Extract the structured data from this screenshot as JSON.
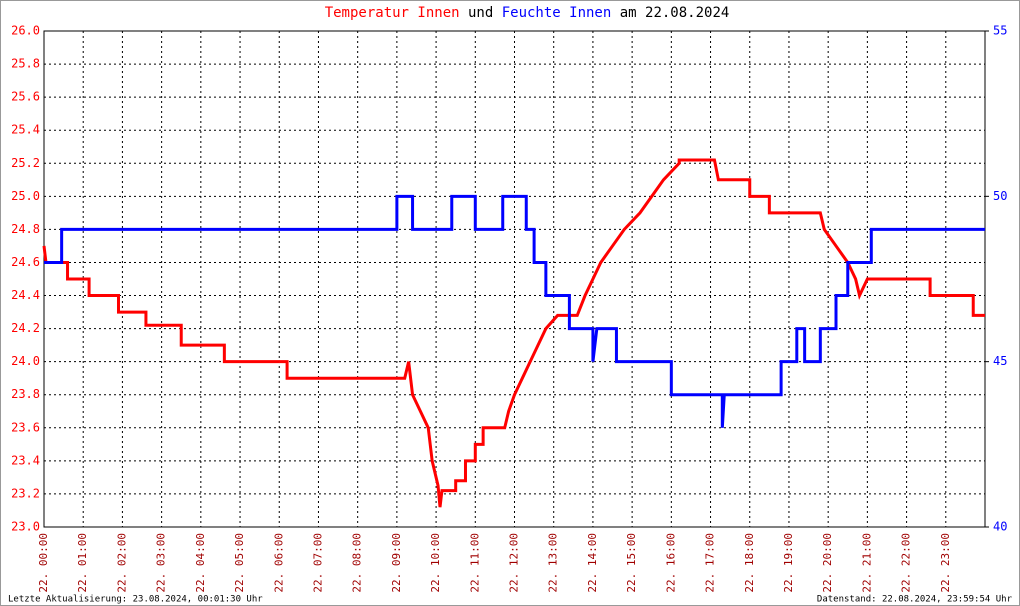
{
  "chart_data": {
    "type": "line",
    "title_connector": "und",
    "title_suffix": "am 22.08.2024",
    "xlim": [
      0,
      24
    ],
    "xticks": [
      {
        "value": 0,
        "label": "22. 00:00"
      },
      {
        "value": 1,
        "label": "22. 01:00"
      },
      {
        "value": 2,
        "label": "22. 02:00"
      },
      {
        "value": 3,
        "label": "22. 03:00"
      },
      {
        "value": 4,
        "label": "22. 04:00"
      },
      {
        "value": 5,
        "label": "22. 05:00"
      },
      {
        "value": 6,
        "label": "22. 06:00"
      },
      {
        "value": 7,
        "label": "22. 07:00"
      },
      {
        "value": 8,
        "label": "22. 08:00"
      },
      {
        "value": 9,
        "label": "22. 09:00"
      },
      {
        "value": 10,
        "label": "22. 10:00"
      },
      {
        "value": 11,
        "label": "22. 11:00"
      },
      {
        "value": 12,
        "label": "22. 12:00"
      },
      {
        "value": 13,
        "label": "22. 13:00"
      },
      {
        "value": 14,
        "label": "22. 14:00"
      },
      {
        "value": 15,
        "label": "22. 15:00"
      },
      {
        "value": 16,
        "label": "22. 16:00"
      },
      {
        "value": 17,
        "label": "22. 17:00"
      },
      {
        "value": 18,
        "label": "22. 18:00"
      },
      {
        "value": 19,
        "label": "22. 19:00"
      },
      {
        "value": 20,
        "label": "22. 20:00"
      },
      {
        "value": 21,
        "label": "22. 21:00"
      },
      {
        "value": 22,
        "label": "22. 22:00"
      },
      {
        "value": 23,
        "label": "22. 23:00"
      }
    ],
    "ylim": [
      23.0,
      26.0
    ],
    "yticks": [
      {
        "value": 23,
        "label": "23.0"
      },
      23.2,
      23.4,
      23.6,
      23.8,
      {
        "value": 24,
        "label": "24.0"
      },
      24.2,
      24.4,
      24.6,
      24.8,
      {
        "value": 25,
        "label": "25.0"
      },
      25.2,
      25.4,
      25.6,
      25.8,
      {
        "value": 26,
        "label": "26.0"
      }
    ],
    "y2lim": [
      40,
      55
    ],
    "y2ticks": [
      40,
      45,
      50,
      55
    ],
    "grid": true,
    "series": [
      {
        "name": "Temperatur Innen",
        "color": "#ff0000",
        "axis": "y",
        "x": [
          0,
          0.05,
          0.6,
          0.6,
          1.15,
          1.15,
          1.9,
          1.9,
          2.6,
          2.6,
          3.5,
          3.5,
          4.6,
          4.6,
          6.2,
          6.2,
          9.2,
          9.3,
          9.4,
          9.6,
          9.8,
          9.9,
          10.05,
          10.1,
          10.15,
          10.5,
          10.5,
          10.75,
          10.75,
          11.0,
          11.0,
          11.2,
          11.2,
          11.75,
          11.85,
          12.0,
          12.2,
          12.4,
          12.6,
          12.8,
          13.1,
          13.6,
          13.8,
          14.0,
          14.2,
          14.5,
          14.8,
          15.2,
          15.5,
          15.8,
          16.2,
          16.2,
          17.1,
          17.2,
          18.0,
          18.0,
          18.5,
          18.5,
          19.8,
          19.9,
          20.2,
          20.5,
          20.7,
          20.8,
          21.0,
          22.0,
          22.6,
          22.6,
          23.7,
          23.7,
          24
        ],
        "values": [
          24.7,
          24.6,
          24.6,
          24.5,
          24.5,
          24.4,
          24.4,
          24.3,
          24.3,
          24.22,
          24.22,
          24.1,
          24.1,
          24.0,
          24.0,
          23.9,
          23.9,
          24.0,
          23.8,
          23.7,
          23.6,
          23.4,
          23.25,
          23.12,
          23.22,
          23.22,
          23.28,
          23.28,
          23.4,
          23.4,
          23.5,
          23.5,
          23.6,
          23.6,
          23.7,
          23.8,
          23.9,
          24.0,
          24.1,
          24.2,
          24.28,
          24.28,
          24.4,
          24.5,
          24.6,
          24.7,
          24.8,
          24.9,
          25.0,
          25.1,
          25.2,
          25.22,
          25.22,
          25.1,
          25.1,
          25.0,
          25.0,
          24.9,
          24.9,
          24.8,
          24.7,
          24.6,
          24.5,
          24.4,
          24.5,
          24.5,
          24.5,
          24.4,
          24.4,
          24.28,
          24.28
        ]
      },
      {
        "name": "Feuchte Innen",
        "color": "#0000ff",
        "axis": "y2",
        "x": [
          0,
          0.45,
          0.45,
          9.0,
          9.0,
          9.4,
          9.4,
          10.4,
          10.4,
          11.0,
          11.0,
          11.7,
          11.7,
          12.3,
          12.3,
          12.5,
          12.5,
          12.8,
          12.8,
          13.4,
          13.4,
          14.0,
          14.0,
          14.1,
          14.6,
          14.6,
          16.0,
          16.0,
          17.3,
          17.3,
          17.35,
          18.8,
          18.8,
          19.2,
          19.2,
          19.4,
          19.4,
          19.8,
          19.8,
          20.2,
          20.2,
          20.5,
          20.5,
          21.1,
          21.1,
          24
        ],
        "values": [
          48,
          48,
          49,
          49,
          50,
          50,
          49,
          49,
          50,
          50,
          49,
          49,
          50,
          50,
          49,
          49,
          48,
          48,
          47,
          47,
          46,
          46,
          45,
          46,
          46,
          45,
          45,
          44,
          44,
          43,
          44,
          44,
          45,
          45,
          46,
          46,
          45,
          45,
          46,
          46,
          47,
          47,
          48,
          48,
          49,
          49
        ]
      }
    ],
    "footer_left": "Letzte Aktualisierung: 23.08.2024, 00:01:30 Uhr",
    "footer_right": "Datenstand: 22.08.2024, 23:59:54 Uhr"
  }
}
